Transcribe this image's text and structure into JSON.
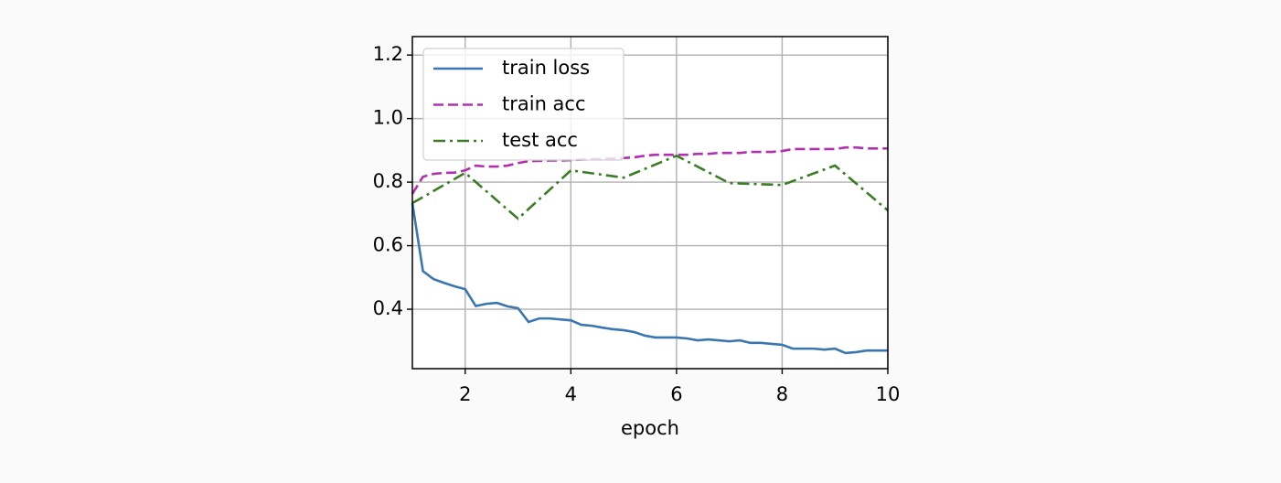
{
  "chart_data": {
    "type": "line",
    "xlabel": "epoch",
    "xlim": [
      1,
      10
    ],
    "ylim": [
      0.213,
      1.258
    ],
    "xticks": [
      2,
      4,
      6,
      8,
      10
    ],
    "yticks": [
      0.4,
      0.6,
      0.8,
      {
        "value": 1,
        "label": "1.0"
      },
      1.2
    ],
    "grid": true,
    "legend": "upper left",
    "series": [
      {
        "name": "train loss",
        "color": "#3a76af",
        "dash": "solid",
        "x": [
          1,
          1.2,
          1.4,
          1.6,
          1.8,
          2,
          2.2,
          2.4,
          2.6,
          2.8,
          3,
          3.2,
          3.4,
          3.6,
          3.8,
          4,
          4.2,
          4.4,
          4.6,
          4.8,
          5,
          5.2,
          5.4,
          5.6,
          5.8,
          6,
          6.2,
          6.4,
          6.6,
          6.8,
          7,
          7.2,
          7.4,
          7.6,
          7.8,
          8,
          8.2,
          8.4,
          8.6,
          8.8,
          9,
          9.2,
          9.4,
          9.6,
          9.8,
          10
        ],
        "values": [
          0.734,
          0.52,
          0.495,
          0.483,
          0.472,
          0.463,
          0.41,
          0.417,
          0.42,
          0.409,
          0.403,
          0.36,
          0.371,
          0.371,
          0.368,
          0.365,
          0.351,
          0.348,
          0.342,
          0.337,
          0.334,
          0.328,
          0.317,
          0.311,
          0.311,
          0.311,
          0.308,
          0.302,
          0.305,
          0.302,
          0.299,
          0.302,
          0.294,
          0.294,
          0.291,
          0.288,
          0.276,
          0.276,
          0.276,
          0.273,
          0.276,
          0.262,
          0.265,
          0.27,
          0.27,
          0.27
        ]
      },
      {
        "name": "train acc",
        "color": "#b030b0",
        "dash": "dashed",
        "x": [
          1,
          1.2,
          1.4,
          1.6,
          1.8,
          2,
          2.2,
          2.4,
          2.6,
          2.8,
          3,
          3.2,
          3.4,
          3.6,
          3.8,
          4,
          4.2,
          4.4,
          4.6,
          4.8,
          5,
          5.2,
          5.4,
          5.6,
          5.8,
          6,
          6.2,
          6.4,
          6.6,
          6.8,
          7,
          7.2,
          7.4,
          7.6,
          7.8,
          8,
          8.2,
          8.4,
          8.6,
          8.8,
          9,
          9.2,
          9.4,
          9.6,
          9.8,
          10
        ],
        "values": [
          0.763,
          0.817,
          0.826,
          0.829,
          0.83,
          0.837,
          0.852,
          0.849,
          0.849,
          0.852,
          0.86,
          0.866,
          0.867,
          0.868,
          0.868,
          0.869,
          0.871,
          0.872,
          0.873,
          0.875,
          0.876,
          0.878,
          0.883,
          0.886,
          0.886,
          0.886,
          0.886,
          0.889,
          0.889,
          0.892,
          0.892,
          0.892,
          0.895,
          0.895,
          0.895,
          0.898,
          0.904,
          0.904,
          0.904,
          0.904,
          0.904,
          0.909,
          0.909,
          0.906,
          0.906,
          0.906
        ]
      },
      {
        "name": "test acc",
        "color": "#3a7d24",
        "dash": "dashdot",
        "x": [
          1,
          2,
          3,
          4,
          5,
          6,
          7,
          8,
          9,
          10
        ],
        "values": [
          0.734,
          0.829,
          0.685,
          0.837,
          0.814,
          0.883,
          0.797,
          0.791,
          0.852,
          0.711
        ]
      }
    ]
  }
}
